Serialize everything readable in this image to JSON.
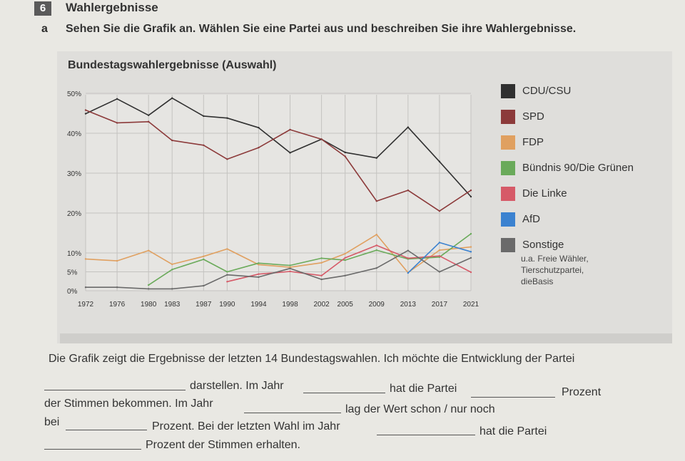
{
  "task": {
    "number": "6",
    "title": "Wahlergebnisse",
    "sub_letter": "a",
    "instruction": "Sehen Sie die Grafik an. Wählen Sie eine Partei aus und beschreiben Sie ihre Wahlergebnisse."
  },
  "chart_data": {
    "type": "line",
    "title": "Bundestagswahlergebnisse (Auswahl)",
    "xlabel": "",
    "ylabel": "",
    "x": [
      1972,
      1976,
      1980,
      1983,
      1987,
      1990,
      1994,
      1998,
      2002,
      2005,
      2009,
      2013,
      2017,
      2021
    ],
    "x_tick_labels": [
      "1972",
      "1976",
      "1980",
      "1983",
      "1987",
      "1990",
      "1994",
      "1998",
      "2002",
      "2005",
      "2009",
      "2013",
      "2017",
      "2021"
    ],
    "y_tick_labels": [
      "0%",
      "5%",
      "10%",
      "20%",
      "30%",
      "40%",
      "50%"
    ],
    "y_ticks": [
      0,
      5,
      10,
      20,
      30,
      40,
      50
    ],
    "ylim": [
      0,
      50
    ],
    "grid": true,
    "legend_position": "right",
    "series": [
      {
        "name": "CDU/CSU",
        "color": "#303030",
        "values": [
          44.9,
          48.6,
          44.5,
          48.8,
          44.3,
          43.8,
          41.4,
          35.1,
          38.5,
          35.2,
          33.8,
          41.5,
          32.9,
          24.1
        ]
      },
      {
        "name": "SPD",
        "color": "#8c3a3a",
        "values": [
          45.8,
          42.6,
          42.9,
          38.2,
          37.0,
          33.5,
          36.4,
          40.9,
          38.5,
          34.2,
          23.0,
          25.7,
          20.5,
          25.7
        ]
      },
      {
        "name": "FDP",
        "color": "#e0a060",
        "values": [
          8.4,
          7.9,
          10.6,
          7.0,
          9.1,
          11.0,
          6.9,
          6.2,
          7.4,
          9.8,
          14.6,
          4.8,
          10.7,
          11.5
        ]
      },
      {
        "name": "Bündnis 90/Die Grünen",
        "color": "#6aaa5a",
        "values": [
          null,
          null,
          1.5,
          5.6,
          8.3,
          5.0,
          7.3,
          6.7,
          8.6,
          8.1,
          10.7,
          8.4,
          8.9,
          14.8
        ]
      },
      {
        "name": "Die Linke",
        "color": "#d65a68",
        "values": [
          null,
          null,
          null,
          null,
          null,
          2.4,
          4.4,
          5.1,
          4.0,
          8.7,
          11.9,
          8.6,
          9.2,
          4.9
        ]
      },
      {
        "name": "AfD",
        "color": "#3b82d0",
        "values": [
          null,
          null,
          null,
          null,
          null,
          null,
          null,
          null,
          null,
          null,
          null,
          4.7,
          12.6,
          10.3
        ]
      },
      {
        "name": "Sonstige",
        "color": "#6a6a6a",
        "values": [
          0.9,
          0.9,
          0.5,
          0.5,
          1.3,
          4.2,
          3.6,
          5.9,
          3.0,
          4.0,
          6.0,
          10.6,
          5.0,
          8.7
        ]
      }
    ],
    "legend_note": [
      "u.a. Freie Wähler,",
      "Tierschutzpartei,",
      "dieBasis"
    ]
  },
  "text": {
    "line1": "Die Grafik zeigt die Ergebnisse der letzten 14 Bundestagswahlen. Ich möchte die Entwicklung der Partei",
    "l2_a": "darstellen. Im Jahr",
    "l2_b": "hat die Partei",
    "l2_c": "Prozent",
    "l3_a": "der Stimmen bekommen. Im Jahr",
    "l3_b": "lag der Wert schon / nur noch",
    "l4_a": "bei",
    "l4_b": "Prozent. Bei der letzten Wahl im Jahr",
    "l4_c": "hat die Partei",
    "l5_a": "Prozent der Stimmen erhalten."
  }
}
